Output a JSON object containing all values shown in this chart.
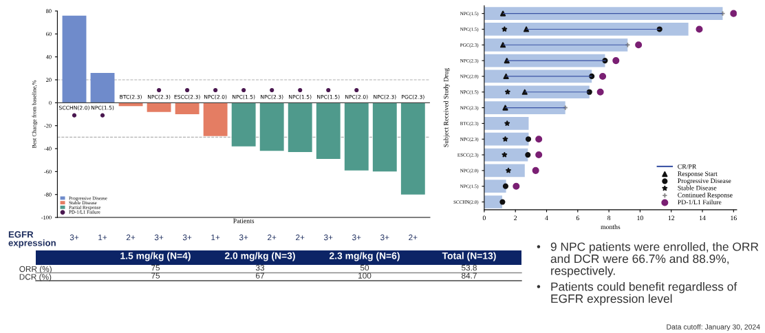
{
  "chart_data": [
    {
      "type": "bar",
      "ylabel": "Best Change from baseline,%",
      "xlabel": "Patients",
      "categories": [
        "SCCHN(2.0)",
        "NPC(1.5)",
        "BTC(2.3)",
        "NPC(2.3)",
        "ESCC(2.3)",
        "NPC(2.0)",
        "NPC(1.5)",
        "NPC(2.3)",
        "NPC(1.5)",
        "NPC(1.5)",
        "NPC(2.0)",
        "NPC(2.3)",
        "PGC(2.3)"
      ],
      "series": [
        {
          "name": "Progressive Disease",
          "color": "#6f8bcb",
          "values": [
            76,
            26,
            null,
            null,
            null,
            null,
            null,
            null,
            null,
            null,
            null,
            null,
            null
          ]
        },
        {
          "name": "Stable Disease",
          "color": "#e47d63",
          "values": [
            null,
            null,
            -3,
            -8,
            -10,
            -29,
            null,
            null,
            null,
            null,
            null,
            null,
            null
          ]
        },
        {
          "name": "Partial Response",
          "color": "#4f9a8c",
          "values": [
            null,
            null,
            null,
            null,
            null,
            null,
            -38,
            -42,
            -43,
            -49,
            -59,
            -60,
            -80
          ]
        },
        {
          "name": "PD-1/L1 Failure",
          "type": "scatter",
          "marker": "circle",
          "color": "#4a1850",
          "values": [
            -11,
            -11,
            null,
            11,
            11,
            11,
            11,
            11,
            11,
            11,
            11,
            null,
            null
          ]
        }
      ],
      "ylim": [
        -100,
        80
      ],
      "yticks": [
        -100,
        -80,
        -60,
        -40,
        -20,
        0,
        20,
        40,
        60,
        80
      ],
      "ref_lines": [
        {
          "axis": "y",
          "value": 20,
          "line_style": "dashed",
          "color": "#b0b0b0"
        },
        {
          "axis": "y",
          "value": -30,
          "line_style": "dashed",
          "color": "#b0b0b0"
        }
      ],
      "legend": "bottom left",
      "annotations": [
        "EGFR expression",
        "3+",
        "1+",
        "2+",
        "3+",
        "3+",
        "1+",
        "3+",
        "2+",
        "2+",
        "3+",
        "3+",
        "3+",
        "2+"
      ]
    },
    {
      "type": "bar",
      "orientation": "horizontal",
      "xlabel": "months",
      "ylabel": "Subject Received Study Drug",
      "categories": [
        "NPC(1.5)",
        "NPC(1.5)",
        "PGC(2.3)",
        "NPC(2.3)",
        "NPC(2.0)",
        "NPC(1.5)",
        "NPC(2.3)",
        "BTC(2.3)",
        "NPC(2.3)",
        "ESCC(2.3)",
        "NPC(2.0)",
        "NPC(1.5)",
        "SCCHN(2.0)"
      ],
      "xlim": [
        0,
        16.2
      ],
      "xticks": [
        0,
        2,
        4,
        6,
        8,
        10,
        12,
        14,
        16
      ],
      "legend": "bottom right",
      "series": [
        {
          "color": "#aec3e4",
          "values": [
            15.3,
            13.1,
            9.2,
            7.75,
            6.9,
            6.75,
            5.2,
            2.85,
            2.85,
            2.8,
            2.6,
            1.4,
            1.15
          ]
        },
        {
          "name": "CR/PR",
          "color": "#3a53a4",
          "base": [
            1.2,
            2.7,
            1.2,
            1.45,
            1.4,
            2.6,
            1.35,
            null,
            null,
            null,
            null,
            null,
            null
          ],
          "values": [
            14.1,
            8.6,
            8.0,
            6.35,
            5.5,
            4.1,
            3.85,
            null,
            null,
            null,
            null,
            null,
            null
          ]
        },
        {
          "name": "Response Start",
          "type": "scatter",
          "marker": "triangle",
          "color": "#111111",
          "values": [
            1.2,
            2.7,
            1.2,
            1.45,
            1.4,
            2.6,
            1.35,
            null,
            null,
            null,
            null,
            null,
            null
          ]
        },
        {
          "name": "Progressive Disease",
          "type": "scatter",
          "marker": "circle",
          "color": "#111111",
          "values": [
            null,
            11.25,
            null,
            7.75,
            6.9,
            6.75,
            null,
            null,
            2.83,
            2.8,
            null,
            1.37,
            1.17
          ]
        },
        {
          "name": "Stable Disease",
          "type": "scatter",
          "marker": "star",
          "color": "#111111",
          "values": [
            null,
            1.3,
            null,
            null,
            null,
            1.5,
            null,
            1.47,
            1.35,
            1.3,
            1.55,
            null,
            null
          ]
        },
        {
          "name": "Continued Response",
          "type": "scatter",
          "marker": "cross",
          "color": "#888888",
          "values": [
            15.3,
            null,
            9.2,
            null,
            null,
            null,
            5.2,
            null,
            null,
            null,
            null,
            null,
            null
          ]
        },
        {
          "name": "PD-1/L1 Failure",
          "type": "scatter",
          "marker": "circle",
          "color": "#7a1f73",
          "values": [
            16.0,
            13.8,
            9.9,
            8.45,
            7.6,
            7.45,
            null,
            null,
            3.5,
            3.5,
            3.3,
            2.05,
            null
          ]
        }
      ]
    },
    {
      "type": "heatmap",
      "categories": [
        "1.5 mg/kg (N=4)",
        "2.0 mg/kg (N=3)",
        "2.3 mg/kg (N=6)",
        "Total (N=13)"
      ],
      "y_categories": [
        "ORR (%)",
        "DCR (%)"
      ],
      "cells": [
        [
          75,
          33,
          50,
          53.8
        ],
        [
          75,
          67,
          100,
          84.7
        ]
      ],
      "data_labels": true
    },
    {
      "type": "other",
      "annotations": [
        "•",
        "9 NPC patients were enrolled, the ORR and DCR were 66.7% and 88.9%, respectively.",
        "•",
        "Patients could benefit regardless of EGFR expression level",
        "Data cutoff: January 30, 2024"
      ]
    }
  ]
}
